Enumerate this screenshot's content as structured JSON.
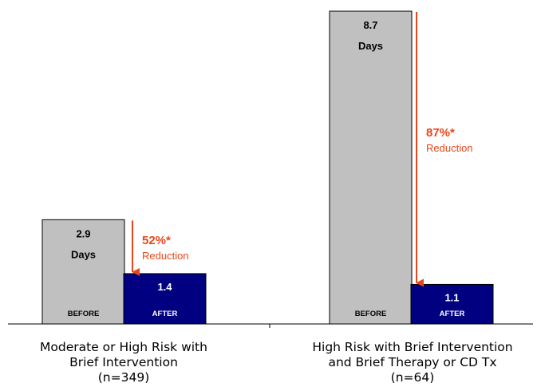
{
  "chart_data": {
    "type": "bar",
    "categories": [
      {
        "lines": [
          "Moderate or High Risk with",
          "Brief Intervention",
          "(n=349)"
        ]
      },
      {
        "lines": [
          "High Risk with Brief Intervention",
          "and Brief Therapy or CD Tx",
          "(n=64)"
        ]
      }
    ],
    "series": [
      {
        "name": "BEFORE",
        "values": [
          2.9,
          8.7
        ]
      },
      {
        "name": "AFTER",
        "values": [
          1.4,
          1.1
        ]
      }
    ],
    "value_unit": "Days",
    "reductions": [
      {
        "percent": "52%*",
        "word": "Reduction"
      },
      {
        "percent": "87%*",
        "word": "Reduction"
      }
    ],
    "ylim": [
      0,
      8.9
    ],
    "colors": {
      "before": "#c0c0c0",
      "after": "#000080",
      "arrow": "#e8461a"
    }
  }
}
